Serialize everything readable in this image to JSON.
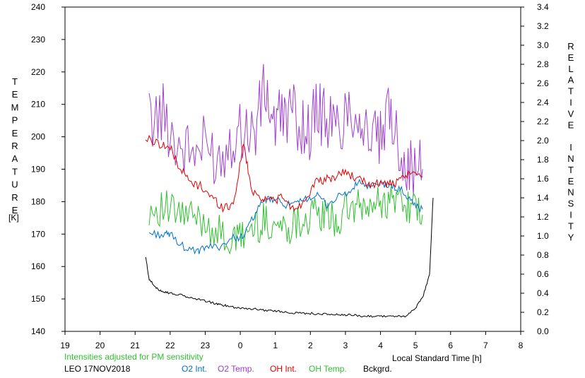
{
  "chart_data": {
    "type": "line",
    "left_axis": {
      "label_letters": [
        "T",
        "E",
        "M",
        "P",
        "E",
        "R",
        "A",
        "T",
        "U",
        "R",
        "E"
      ],
      "unit": "[K]",
      "ylim": [
        140,
        240
      ],
      "ticks": [
        "140",
        "150",
        "160",
        "170",
        "180",
        "190",
        "200",
        "210",
        "220",
        "230",
        "240"
      ]
    },
    "right_axis": {
      "label_letters": [
        "R",
        "E",
        "L",
        "A",
        "T",
        "I",
        "V",
        "E",
        "",
        "I",
        "N",
        "T",
        "E",
        "N",
        "S",
        "I",
        "T",
        "Y"
      ],
      "ylim": [
        0.0,
        3.4
      ],
      "ticks": [
        "0.0",
        "0.2",
        "0.4",
        "0.6",
        "0.8",
        "1.0",
        "1.2",
        "1.4",
        "1.6",
        "1.8",
        "2.0",
        "2.2",
        "2.4",
        "2.6",
        "2.8",
        "3.0",
        "3.2",
        "3.4"
      ]
    },
    "x_axis": {
      "label": "Local Standard Time [h]",
      "ticks": [
        "19",
        "20",
        "21",
        "22",
        "23",
        "0",
        "1",
        "2",
        "3",
        "4",
        "5",
        "6",
        "7",
        "8"
      ]
    },
    "note": "Intensities adjusted for PM sensitivity",
    "station": "LEO 17NOV2018",
    "legend": [
      {
        "label": "O2 Int.",
        "color": "#0070d0"
      },
      {
        "label": "O2 Temp.",
        "color": "#a040d0"
      },
      {
        "label": "OH Int.",
        "color": "#e00000"
      },
      {
        "label": "OH Temp.",
        "color": "#30c030"
      },
      {
        "label": "Bckgrd.",
        "color": "#000000"
      }
    ],
    "series": [
      {
        "name": "O2 Temp.",
        "axis": "left",
        "color": "#a040d0",
        "x": [
          21.4,
          21.8,
          22.2,
          22.6,
          23.0,
          23.4,
          23.8,
          24.1,
          24.4,
          24.7,
          25.0,
          25.3,
          25.6,
          25.9,
          26.2,
          26.5,
          26.8,
          27.1,
          27.4,
          27.7,
          28.0,
          28.3,
          28.6,
          28.9,
          29.2
        ],
        "y": [
          205,
          207,
          198,
          195,
          197,
          193,
          201,
          203,
          201,
          215,
          203,
          208,
          206,
          201,
          208,
          205,
          202,
          210,
          206,
          200,
          198,
          208,
          195,
          189,
          190
        ]
      },
      {
        "name": "OH Temp.",
        "axis": "left",
        "color": "#30c030",
        "x": [
          21.4,
          21.8,
          22.2,
          22.6,
          23.0,
          23.4,
          23.8,
          24.1,
          24.4,
          24.7,
          25.0,
          25.3,
          25.6,
          25.9,
          26.2,
          26.5,
          26.8,
          27.1,
          27.4,
          27.7,
          28.0,
          28.3,
          28.6,
          28.9,
          29.2
        ],
        "y": [
          178,
          178,
          176,
          175,
          174,
          170,
          167,
          170,
          172,
          174,
          173,
          172,
          174,
          175,
          176,
          175,
          174,
          178,
          178,
          178,
          180,
          180,
          181,
          178,
          176
        ]
      },
      {
        "name": "O2 Int.",
        "axis": "right",
        "color": "#0070d0",
        "x": [
          21.4,
          21.8,
          22.0,
          22.4,
          22.8,
          23.0,
          23.4,
          23.8,
          24.1,
          24.4,
          24.7,
          25.0,
          25.3,
          25.6,
          25.9,
          26.2,
          26.5,
          26.8,
          27.1,
          27.4,
          27.7,
          28.0,
          28.3,
          28.6,
          28.9,
          29.2
        ],
        "y": [
          1.03,
          1.01,
          1.02,
          0.88,
          0.83,
          0.88,
          0.89,
          0.98,
          1.0,
          1.22,
          1.38,
          1.38,
          1.33,
          1.33,
          1.4,
          1.42,
          1.32,
          1.42,
          1.45,
          1.57,
          1.5,
          1.55,
          1.52,
          1.48,
          1.35,
          1.28
        ]
      },
      {
        "name": "OH Int.",
        "axis": "right",
        "color": "#e00000",
        "x": [
          21.3,
          21.7,
          22.0,
          22.3,
          22.6,
          22.9,
          23.2,
          23.5,
          23.8,
          24.1,
          24.3,
          24.6,
          24.9,
          25.2,
          25.5,
          25.8,
          26.1,
          26.4,
          26.7,
          27.0,
          27.3,
          27.6,
          27.9,
          28.2,
          28.5,
          28.8,
          29.2
        ],
        "y": [
          2.02,
          1.97,
          1.92,
          1.7,
          1.55,
          1.52,
          1.4,
          1.3,
          1.33,
          1.98,
          1.5,
          1.4,
          1.38,
          1.4,
          1.28,
          1.35,
          1.55,
          1.58,
          1.62,
          1.68,
          1.6,
          1.55,
          1.55,
          1.55,
          1.55,
          1.65,
          1.62
        ]
      },
      {
        "name": "Bckgrd.",
        "axis": "right",
        "color": "#000000",
        "x": [
          21.3,
          21.4,
          21.6,
          21.8,
          22.0,
          22.3,
          22.6,
          22.9,
          23.2,
          23.4,
          23.6,
          23.9,
          24.2,
          24.5,
          24.8,
          25.1,
          25.4,
          25.7,
          26.0,
          26.3,
          26.6,
          26.9,
          27.2,
          27.5,
          27.8,
          28.1,
          28.4,
          28.7,
          29.0,
          29.2,
          29.4,
          29.5
        ],
        "y": [
          0.78,
          0.55,
          0.45,
          0.42,
          0.4,
          0.38,
          0.35,
          0.33,
          0.3,
          0.28,
          0.27,
          0.25,
          0.24,
          0.23,
          0.22,
          0.21,
          0.2,
          0.19,
          0.19,
          0.18,
          0.18,
          0.17,
          0.17,
          0.16,
          0.16,
          0.16,
          0.16,
          0.15,
          0.25,
          0.35,
          0.6,
          1.4
        ]
      }
    ]
  }
}
